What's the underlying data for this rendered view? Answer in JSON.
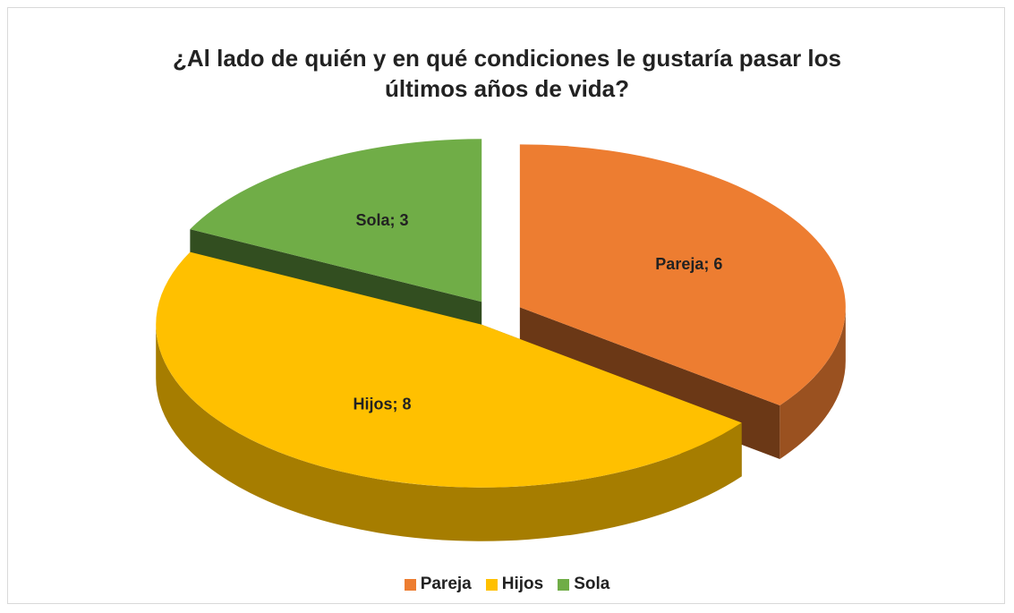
{
  "chart_data": {
    "type": "pie3d",
    "title": "¿Al lado de quién y en qué condiciones le gustaría pasar los últimos años de vida?",
    "categories": [
      "Pareja",
      "Hijos",
      "Sola"
    ],
    "values": [
      6,
      8,
      3
    ],
    "value_labels": [
      "Pareja; 6",
      "Hijos; 8",
      "Sola; 3"
    ],
    "colors": [
      "#ed7d31",
      "#ffc000",
      "#70ad47"
    ],
    "legend": "bottom"
  }
}
